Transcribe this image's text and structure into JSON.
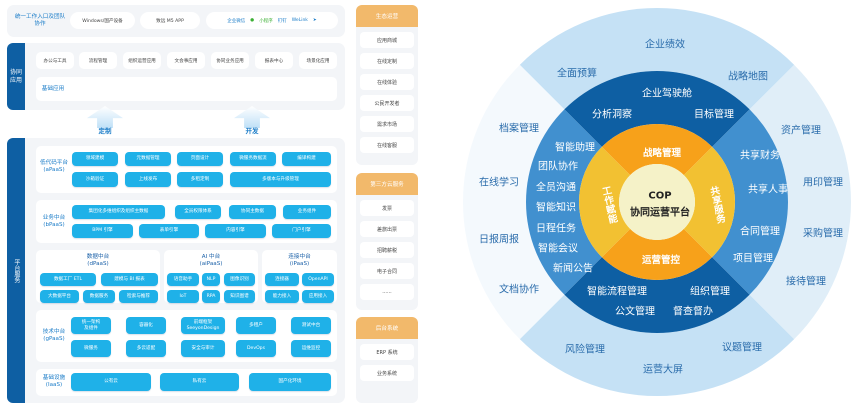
{
  "entry": {
    "label": "统一工作入口及团队协作",
    "pills": [
      "Windows/国产设备",
      "致远 M5 APP"
    ],
    "logos": [
      "企业微信",
      "微信",
      "小程序",
      "钉钉",
      "WeLink",
      "飞书"
    ]
  },
  "collab": {
    "tab": "协同应用",
    "apps": [
      "办公与工具",
      "流程管理",
      "组织运营应用",
      "文会事应用",
      "协同业务应用",
      "报表中心",
      "场景化应用"
    ],
    "base_label": "基础应用",
    "base": [
      "制度规则体系",
      "统一授权体系",
      "公共资源管理",
      "共享任务池",
      "基础资料库"
    ]
  },
  "arrows": [
    "定制",
    "开发"
  ],
  "platform": {
    "tab": "平台服务",
    "apaas": {
      "label": "低代码平台\n(aPaaS)",
      "row1": [
        "领域建模",
        "元数据管理",
        "页面设计",
        "微服务数据流",
        "编译构建"
      ],
      "row2": [
        "沙箱验证",
        "上线发布",
        "多租定制",
        "多版本与升级管理"
      ]
    },
    "bpaas": {
      "label": "业务中台\n(bPaaS)",
      "row1": [
        "集团化多维组织及组织主数据",
        "全员权限体系",
        "协同主数据",
        "业务组件"
      ],
      "row2": [
        "BPM 引擎",
        "表单引擎",
        "内容引擎",
        "门户引擎"
      ]
    },
    "dpaas": {
      "label": "数据中台\n(dPaaS)",
      "row1": [
        "数据工厂 ETL",
        "建模与 BI 报表"
      ],
      "row2": [
        "大数据平台",
        "数据服务",
        "检索与推荐"
      ]
    },
    "aipaas": {
      "label": "AI 中台\n(aiPaaS)",
      "row1": [
        "语音助手",
        "NLP",
        "图像识别"
      ],
      "row2": [
        "IoT",
        "RPA",
        "知识图谱"
      ]
    },
    "ipaas": {
      "label": "连接中台\n(iPaaS)",
      "row1": [
        "连接器",
        "OpenAPI"
      ],
      "row2": [
        "能力接入",
        "应用接入"
      ]
    },
    "gpaas": {
      "label": "技术中台\n(gPaaS)",
      "row1": [
        "统一架构\n及组件",
        "容器化",
        "前端框架\nSeeyonDesign",
        "多租户",
        "测试中台"
      ],
      "row2": [
        "微服务",
        "多云适配",
        "安全与审计",
        "DevOps",
        "运维监控"
      ]
    },
    "iaas": {
      "label": "基础设施\n(IaaS)",
      "items": [
        "公有云",
        "私有云",
        "国产化环境"
      ]
    }
  },
  "side": {
    "eco": {
      "title": "生态运营",
      "items": [
        "应用商城",
        "在线定制",
        "在线体验",
        "公民开发者",
        "需求市场",
        "在线客服"
      ]
    },
    "cloud": {
      "title": "第三方云服务",
      "items": [
        "发票",
        "差旅出票",
        "招聘薪税",
        "电子合同",
        "......"
      ]
    },
    "backend": {
      "title": "后台系统",
      "items": [
        "ERP 系统",
        "业务系统"
      ]
    }
  },
  "cop": {
    "center": [
      "COP",
      "协同运营平台"
    ],
    "core": {
      "top": "战略管理",
      "bottom": "运营管控",
      "left": "工作赋能",
      "right": "共享服务"
    },
    "dark": {
      "top": [
        "企业驾驶舱",
        "分析洞察",
        "目标管理"
      ],
      "bottom": [
        "智能流程管理",
        "组织管理",
        "公文管理",
        "督查督办"
      ]
    },
    "mid_left": [
      "智能助理",
      "团队协作",
      "全员沟通",
      "智能知识",
      "日程任务",
      "智能会议",
      "新闻公告"
    ],
    "mid_right": [
      "共享财务",
      "共享人事",
      "合同管理",
      "项目管理"
    ],
    "outer": {
      "top": [
        "企业绩效",
        "全面预算",
        "战略地图"
      ],
      "left": [
        "档案管理",
        "在线学习",
        "日报周报",
        "文档协作"
      ],
      "right": [
        "资产管理",
        "用印管理",
        "采购管理",
        "接待管理"
      ],
      "bottom": [
        "风险管理",
        "议题管理",
        "运营大屏"
      ]
    },
    "colors": {
      "outer_tb": "#c5e1f5",
      "outer_l": "#f4f9fd",
      "outer_r": "#e0eef8",
      "dark": "#0e5fa3",
      "mid": "#4190cf",
      "orange": "#f7a11a",
      "yellow": "#f2c132",
      "center": "#f5f2c8"
    }
  }
}
